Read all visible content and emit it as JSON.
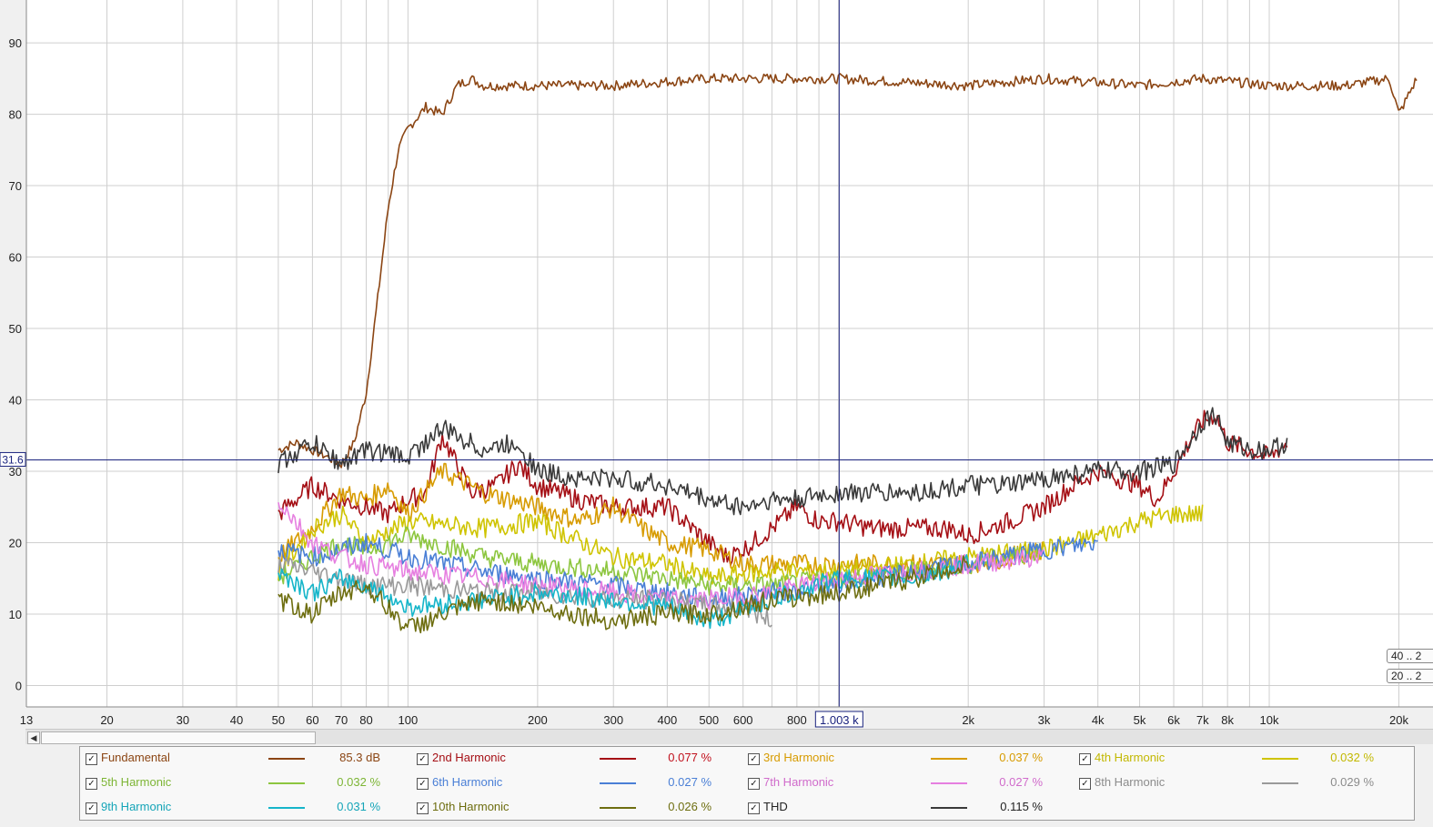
{
  "chart_data": {
    "type": "line",
    "xscale": "log",
    "xlim": [
      13,
      24000
    ],
    "ylim": [
      -3,
      96
    ],
    "grid": true,
    "xtick_labels": [
      {
        "v": 13,
        "t": "13"
      },
      {
        "v": 20,
        "t": "20"
      },
      {
        "v": 30,
        "t": "30"
      },
      {
        "v": 40,
        "t": "40"
      },
      {
        "v": 50,
        "t": "50"
      },
      {
        "v": 60,
        "t": "60"
      },
      {
        "v": 70,
        "t": "70"
      },
      {
        "v": 80,
        "t": "80"
      },
      {
        "v": 100,
        "t": "100"
      },
      {
        "v": 200,
        "t": "200"
      },
      {
        "v": 300,
        "t": "300"
      },
      {
        "v": 400,
        "t": "400"
      },
      {
        "v": 500,
        "t": "500"
      },
      {
        "v": 600,
        "t": "600"
      },
      {
        "v": 800,
        "t": "800"
      },
      {
        "v": 2000,
        "t": "2k"
      },
      {
        "v": 3000,
        "t": "3k"
      },
      {
        "v": 4000,
        "t": "4k"
      },
      {
        "v": 5000,
        "t": "5k"
      },
      {
        "v": 6000,
        "t": "6k"
      },
      {
        "v": 7000,
        "t": "7k"
      },
      {
        "v": 8000,
        "t": "8k"
      },
      {
        "v": 10000,
        "t": "10k"
      },
      {
        "v": 20000,
        "t": "20k"
      }
    ],
    "xgrid": [
      20,
      30,
      40,
      50,
      60,
      70,
      80,
      90,
      100,
      200,
      300,
      400,
      500,
      600,
      700,
      800,
      900,
      1000,
      2000,
      3000,
      4000,
      5000,
      6000,
      7000,
      8000,
      9000,
      10000,
      20000
    ],
    "yticks": [
      0,
      10,
      20,
      30,
      40,
      50,
      60,
      70,
      80,
      90
    ],
    "cursor": {
      "x": 1003,
      "y": 31.6,
      "x_label": "1.003 k",
      "y_label": "31.6"
    },
    "series": [
      {
        "name": "Fundamental",
        "color": "#8B4513",
        "x": [
          50,
          55,
          60,
          65,
          70,
          75,
          80,
          85,
          90,
          95,
          100,
          110,
          120,
          130,
          140,
          150,
          200,
          300,
          500,
          800,
          1000,
          2000,
          3000,
          5000,
          7000,
          10000,
          15000,
          19000,
          20000,
          22000
        ],
        "y": [
          33,
          34,
          33,
          32,
          31,
          34,
          41,
          54,
          67,
          75,
          78,
          81,
          80,
          84,
          85,
          84,
          84,
          84,
          85,
          85,
          85,
          84,
          85,
          84,
          85,
          84,
          84,
          85,
          80,
          85
        ]
      },
      {
        "name": "2nd Harmonic",
        "color": "#A50F15",
        "x": [
          50,
          60,
          70,
          80,
          90,
          100,
          110,
          120,
          140,
          160,
          180,
          200,
          250,
          300,
          400,
          500,
          550,
          600,
          700,
          800,
          900,
          1000,
          1200,
          1500,
          1800,
          2000,
          2500,
          3000,
          3500,
          4000,
          5000,
          5500,
          6000,
          6500,
          7000,
          7500,
          8000,
          9000,
          10000,
          11000
        ],
        "y": [
          24,
          28,
          26,
          25,
          24,
          26,
          27,
          35,
          27,
          28,
          31,
          28,
          26,
          25,
          25,
          20,
          18,
          19,
          22,
          25,
          23,
          23,
          22,
          22,
          22,
          21,
          23,
          25,
          28,
          30,
          28,
          26,
          30,
          34,
          37,
          38,
          34,
          33,
          32,
          34
        ]
      },
      {
        "name": "3rd Harmonic",
        "color": "#D79B00",
        "x": [
          50,
          60,
          70,
          80,
          90,
          100,
          120,
          150,
          200,
          250,
          300,
          350,
          400,
          500,
          600,
          700,
          800,
          1000,
          1500,
          2000,
          2500,
          3000
        ],
        "y": [
          18,
          22,
          27,
          26,
          28,
          24,
          30,
          27,
          25,
          23,
          25,
          22,
          20,
          19,
          17,
          17,
          17,
          17,
          17,
          17,
          18,
          19
        ]
      },
      {
        "name": "4th Harmonic",
        "color": "#CFC400",
        "x": [
          50,
          60,
          70,
          80,
          100,
          150,
          200,
          300,
          400,
          500,
          700,
          1000,
          1500,
          2000,
          3000,
          4000,
          5000,
          6000,
          7000
        ],
        "y": [
          16,
          22,
          24,
          20,
          23,
          22,
          23,
          18,
          17,
          15,
          16,
          16,
          17,
          18,
          19,
          21,
          23,
          24,
          24
        ]
      },
      {
        "name": "5th Harmonic",
        "color": "#8DC63F",
        "x": [
          50,
          60,
          70,
          80,
          100,
          150,
          200,
          300,
          400,
          500,
          700,
          1000,
          1500,
          2000,
          3000
        ],
        "y": [
          15,
          18,
          20,
          19,
          21,
          18,
          17,
          16,
          15,
          14,
          14,
          15,
          16,
          17,
          19
        ]
      },
      {
        "name": "6th Harmonic",
        "color": "#4A7FD6",
        "x": [
          50,
          60,
          70,
          80,
          100,
          150,
          200,
          300,
          400,
          500,
          700,
          1000,
          1500,
          2000,
          3000,
          4000
        ],
        "y": [
          19,
          18,
          19,
          20,
          18,
          16,
          15,
          14,
          13,
          12,
          13,
          14,
          16,
          17,
          19,
          20
        ]
      },
      {
        "name": "7th Harmonic",
        "color": "#E67FE0",
        "x": [
          50,
          60,
          70,
          80,
          100,
          150,
          200,
          300,
          400,
          500,
          700,
          1000,
          1500,
          2000,
          3000
        ],
        "y": [
          26,
          20,
          18,
          17,
          16,
          15,
          14,
          13,
          12,
          12,
          13,
          15,
          16,
          17,
          18
        ]
      },
      {
        "name": "8th Harmonic",
        "color": "#9A9A9A",
        "x": [
          50,
          60,
          70,
          80,
          100,
          150,
          200,
          300,
          400,
          500,
          600,
          700
        ],
        "y": [
          17,
          16,
          15,
          14,
          14,
          13,
          13,
          12,
          12,
          11,
          11,
          9
        ]
      },
      {
        "name": "9th Harmonic",
        "color": "#15B5C9",
        "x": [
          50,
          60,
          70,
          80,
          100,
          150,
          200,
          300,
          400,
          500,
          700,
          1000,
          1500,
          2000
        ],
        "y": [
          16,
          13,
          15,
          14,
          11,
          12,
          13,
          12,
          11,
          9,
          12,
          15,
          15,
          17
        ]
      },
      {
        "name": "10th Harmonic",
        "color": "#6E6E10",
        "x": [
          50,
          60,
          70,
          80,
          100,
          150,
          200,
          300,
          400,
          500,
          700,
          1000,
          1500,
          2000
        ],
        "y": [
          12,
          10,
          13,
          14,
          8,
          12,
          11,
          9,
          10,
          10,
          12,
          13,
          15,
          17
        ]
      },
      {
        "name": "THD",
        "color": "#3A3A3A",
        "x": [
          50,
          60,
          70,
          80,
          100,
          120,
          150,
          180,
          200,
          250,
          300,
          400,
          500,
          600,
          700,
          800,
          1000,
          1500,
          2000,
          2500,
          3000,
          4000,
          5000,
          6000,
          6500,
          7000,
          7500,
          8000,
          9000,
          10000,
          11000
        ],
        "y": [
          31,
          34,
          31,
          33,
          32,
          36,
          33,
          34,
          30,
          29,
          29,
          28,
          26,
          25,
          26,
          26,
          27,
          27,
          28,
          28,
          29,
          30,
          30,
          31,
          34,
          37,
          38,
          34,
          33,
          33,
          34
        ]
      }
    ]
  },
  "legend": {
    "items": [
      {
        "name": "Fundamental",
        "value": "85.3 dB",
        "color": "#8B4513",
        "text_color": "#8B4513",
        "value_color": "#8B4513"
      },
      {
        "name": "2nd Harmonic",
        "value": "0.077 %",
        "color": "#A50F15",
        "text_color": "#A50F15",
        "value_color": "#C0101C"
      },
      {
        "name": "3rd Harmonic",
        "value": "0.037 %",
        "color": "#D79B00",
        "text_color": "#D79B00",
        "value_color": "#D79B00"
      },
      {
        "name": "4th Harmonic",
        "value": "0.032 %",
        "color": "#CFC400",
        "text_color": "#C2B800",
        "value_color": "#C2B800"
      },
      {
        "name": "5th Harmonic",
        "value": "0.032 %",
        "color": "#8DC63F",
        "text_color": "#7DB535",
        "value_color": "#7DB535"
      },
      {
        "name": "6th Harmonic",
        "value": "0.027 %",
        "color": "#4A7FD6",
        "text_color": "#4A7FD6",
        "value_color": "#4A7FD6"
      },
      {
        "name": "7th Harmonic",
        "value": "0.027 %",
        "color": "#E67FE0",
        "text_color": "#D06BCB",
        "value_color": "#D06BCB"
      },
      {
        "name": "8th Harmonic",
        "value": "0.029 %",
        "color": "#9A9A9A",
        "text_color": "#8C8C8C",
        "value_color": "#8C8C8C"
      },
      {
        "name": "9th Harmonic",
        "value": "0.031 %",
        "color": "#15B5C9",
        "text_color": "#15A5B8",
        "value_color": "#15A5B8"
      },
      {
        "name": "10th Harmonic",
        "value": "0.026 %",
        "color": "#6E6E10",
        "text_color": "#6E6E10",
        "value_color": "#6E6E10"
      },
      {
        "name": "THD",
        "value": "0.115 %",
        "color": "#3A3A3A",
        "text_color": "#222222",
        "value_color": "#222222"
      }
    ]
  },
  "range_buttons": [
    "40 .. 2",
    "20 .. 2"
  ],
  "checkbox_mark": "☑"
}
